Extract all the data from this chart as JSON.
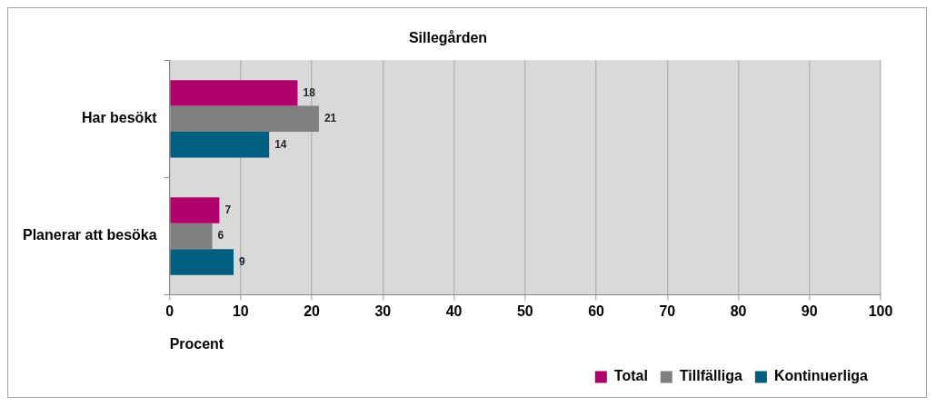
{
  "chart_data": {
    "type": "bar",
    "orientation": "horizontal",
    "title": "Sillegården",
    "xlabel": "Procent",
    "categories": [
      "Har besökt",
      "Planerar att besöka"
    ],
    "series": [
      {
        "name": "Total",
        "color": "#b0006b",
        "values": [
          18,
          7
        ]
      },
      {
        "name": "Tillfälliga",
        "color": "#7f7f7f",
        "values": [
          21,
          6
        ]
      },
      {
        "name": "Kontinuerliga",
        "color": "#005f7f",
        "values": [
          14,
          9
        ]
      }
    ],
    "xlim": [
      0,
      100
    ],
    "xticks": [
      0,
      10,
      20,
      30,
      40,
      50,
      60,
      70,
      80,
      90,
      100
    ],
    "grid": "x",
    "legend": "bottom right",
    "data_labels": true
  }
}
